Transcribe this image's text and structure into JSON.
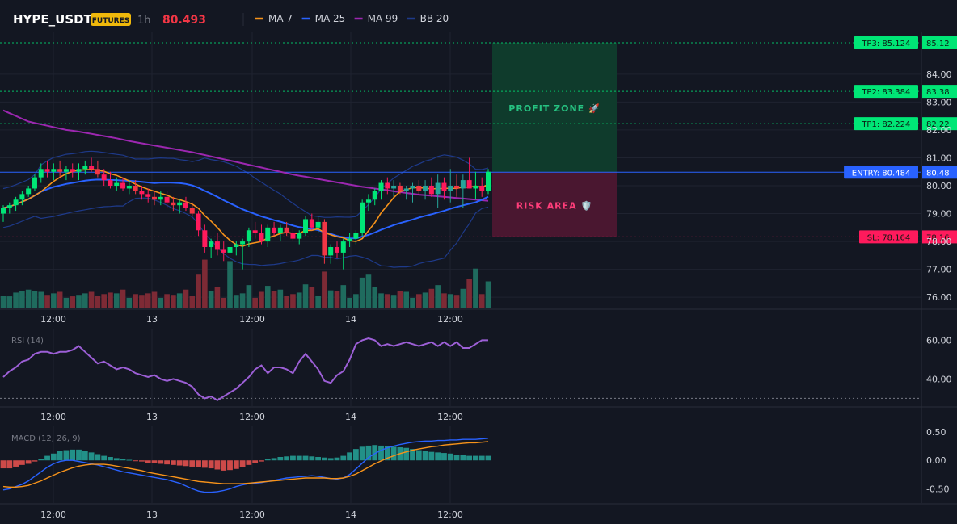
{
  "header": {
    "symbol": "HYPE_USDT",
    "badge": "FUTURES",
    "timeframe": "1h",
    "last_price": "80.493"
  },
  "legend": [
    {
      "label": "MA 7",
      "color": "#f7931a"
    },
    {
      "label": "MA 25",
      "color": "#2962ff"
    },
    {
      "label": "MA 99",
      "color": "#9c27b0"
    },
    {
      "label": "BB 20",
      "color": "#1e3a8a"
    }
  ],
  "colors": {
    "up": "#26a69a",
    "up_bright": "#00e676",
    "down": "#f23645",
    "down_bright": "#ff1a5c",
    "tp": "#00e676",
    "entry": "#2962ff",
    "sl": "#ff1a5c"
  },
  "time_labels": [
    "12:00",
    "13",
    "12:00",
    "14",
    "12:00"
  ],
  "price_axis": {
    "ticks": [
      "84.00",
      "83.00",
      "82.00",
      "81.00",
      "80.00",
      "79.00",
      "78.00",
      "77.00",
      "76.00"
    ],
    "ylim": [
      75.6,
      85.5
    ]
  },
  "levels": [
    {
      "tag": "TP3: 85.124",
      "axis": "85.12",
      "value": 85.124,
      "kind": "tp"
    },
    {
      "tag": "TP2: 83.384",
      "axis": "83.38",
      "value": 83.384,
      "kind": "tp"
    },
    {
      "tag": "TP1: 82.224",
      "axis": "82.22",
      "value": 82.224,
      "kind": "tp"
    },
    {
      "tag": "ENTRY: 80.484",
      "axis": "80.48",
      "value": 80.484,
      "kind": "entry"
    },
    {
      "tag": "SL: 78.164",
      "axis": "78.16",
      "value": 78.164,
      "kind": "sl"
    }
  ],
  "zones": {
    "profit": "PROFIT ZONE 🚀",
    "risk": "RISK AREA 🛡️"
  },
  "chart_data": [
    {
      "type": "candlestick",
      "title": "HYPE_USDT 1h",
      "candles": [
        [
          79.0,
          79.3,
          78.7,
          79.2
        ],
        [
          79.2,
          79.4,
          79.0,
          79.3
        ],
        [
          79.3,
          79.6,
          79.1,
          79.5
        ],
        [
          79.5,
          79.8,
          79.3,
          79.7
        ],
        [
          79.7,
          80.0,
          79.6,
          79.9
        ],
        [
          79.9,
          80.4,
          79.8,
          80.3
        ],
        [
          80.3,
          80.8,
          80.1,
          80.6
        ],
        [
          80.6,
          80.9,
          80.3,
          80.5
        ],
        [
          80.5,
          80.8,
          80.2,
          80.6
        ],
        [
          80.6,
          80.9,
          80.3,
          80.5
        ],
        [
          80.5,
          80.7,
          80.2,
          80.6
        ],
        [
          80.6,
          80.8,
          80.3,
          80.5
        ],
        [
          80.5,
          80.8,
          80.2,
          80.6
        ],
        [
          80.6,
          80.9,
          80.4,
          80.7
        ],
        [
          80.7,
          81.0,
          80.5,
          80.6
        ],
        [
          80.6,
          80.9,
          80.3,
          80.4
        ],
        [
          80.4,
          80.6,
          80.0,
          80.2
        ],
        [
          80.2,
          80.5,
          79.9,
          80.0
        ],
        [
          80.0,
          80.3,
          79.8,
          80.1
        ],
        [
          80.1,
          80.3,
          79.8,
          79.9
        ],
        [
          79.9,
          80.2,
          79.7,
          80.0
        ],
        [
          80.0,
          80.2,
          79.7,
          79.8
        ],
        [
          79.8,
          80.0,
          79.5,
          79.7
        ],
        [
          79.7,
          79.9,
          79.4,
          79.6
        ],
        [
          79.6,
          79.8,
          79.3,
          79.5
        ],
        [
          79.5,
          79.8,
          79.3,
          79.6
        ],
        [
          79.6,
          79.8,
          79.2,
          79.4
        ],
        [
          79.4,
          79.6,
          79.1,
          79.3
        ],
        [
          79.3,
          79.5,
          79.0,
          79.4
        ],
        [
          79.4,
          79.6,
          79.1,
          79.2
        ],
        [
          79.2,
          79.4,
          78.9,
          79.0
        ],
        [
          79.0,
          79.1,
          78.2,
          78.4
        ],
        [
          78.4,
          78.6,
          77.6,
          77.8
        ],
        [
          77.8,
          78.1,
          77.4,
          78.0
        ],
        [
          78.0,
          78.3,
          77.5,
          77.7
        ],
        [
          77.7,
          78.0,
          77.3,
          77.6
        ],
        [
          77.6,
          77.9,
          77.3,
          77.8
        ],
        [
          77.8,
          78.0,
          77.5,
          77.9
        ],
        [
          77.9,
          78.1,
          77.0,
          78.0
        ],
        [
          78.0,
          78.5,
          77.8,
          78.4
        ],
        [
          78.4,
          78.7,
          78.1,
          78.3
        ],
        [
          78.3,
          78.6,
          77.9,
          78.0
        ],
        [
          78.0,
          78.6,
          77.8,
          78.5
        ],
        [
          78.5,
          78.7,
          78.2,
          78.3
        ],
        [
          78.3,
          78.6,
          78.0,
          78.5
        ],
        [
          78.5,
          78.7,
          78.2,
          78.3
        ],
        [
          78.3,
          78.5,
          78.0,
          78.1
        ],
        [
          78.1,
          78.4,
          77.9,
          78.3
        ],
        [
          78.3,
          78.9,
          78.2,
          78.8
        ],
        [
          78.8,
          79.0,
          78.4,
          78.5
        ],
        [
          78.5,
          78.9,
          78.3,
          78.7
        ],
        [
          78.7,
          78.8,
          77.2,
          77.5
        ],
        [
          77.5,
          77.9,
          77.2,
          77.8
        ],
        [
          77.8,
          78.0,
          77.4,
          77.6
        ],
        [
          77.6,
          78.1,
          77.0,
          78.0
        ],
        [
          78.0,
          78.3,
          77.8,
          78.1
        ],
        [
          78.1,
          78.4,
          77.9,
          78.3
        ],
        [
          78.3,
          79.5,
          78.2,
          79.4
        ],
        [
          79.4,
          79.7,
          79.1,
          79.5
        ],
        [
          79.5,
          79.9,
          79.3,
          79.8
        ],
        [
          79.8,
          80.2,
          79.5,
          80.1
        ],
        [
          80.1,
          80.3,
          79.7,
          79.9
        ],
        [
          79.9,
          80.2,
          79.6,
          80.0
        ],
        [
          80.0,
          80.1,
          79.7,
          79.8
        ],
        [
          79.8,
          80.0,
          79.5,
          79.9
        ],
        [
          79.9,
          80.1,
          79.4,
          80.0
        ],
        [
          80.0,
          80.2,
          79.7,
          79.8
        ],
        [
          79.8,
          80.2,
          79.5,
          80.0
        ],
        [
          80.0,
          80.3,
          79.6,
          79.7
        ],
        [
          79.7,
          80.4,
          79.2,
          80.1
        ],
        [
          80.1,
          80.3,
          79.5,
          79.8
        ],
        [
          79.8,
          80.6,
          79.4,
          80.0
        ],
        [
          80.0,
          80.4,
          79.6,
          79.9
        ],
        [
          79.9,
          80.4,
          79.2,
          80.2
        ],
        [
          80.2,
          81.0,
          79.9,
          79.9
        ],
        [
          79.9,
          80.5,
          79.5,
          80.0
        ],
        [
          80.0,
          80.3,
          79.6,
          79.8
        ],
        [
          79.8,
          80.6,
          79.7,
          80.5
        ]
      ]
    },
    {
      "type": "line",
      "title": "RSI (14)",
      "ylim": [
        26,
        66
      ],
      "ticks": [
        "60.00",
        "40.00"
      ],
      "values": [
        41,
        44,
        46,
        49,
        50,
        53,
        54,
        54,
        53,
        54,
        54,
        55,
        57,
        54,
        51,
        48,
        49,
        47,
        45,
        46,
        45,
        43,
        42,
        41,
        42,
        40,
        39,
        40,
        39,
        38,
        36,
        32,
        30,
        31,
        29,
        31,
        33,
        35,
        38,
        41,
        45,
        47,
        43,
        46,
        46,
        45,
        43,
        49,
        53,
        49,
        45,
        39,
        38,
        42,
        44,
        50,
        58,
        60,
        61,
        60,
        57,
        58,
        57,
        58,
        59,
        58,
        57,
        58,
        59,
        57,
        59,
        57,
        59,
        56,
        56,
        58,
        60,
        60
      ]
    },
    {
      "type": "bar+line",
      "title": "MACD (12, 26, 9)",
      "ylim": [
        -0.75,
        0.6
      ],
      "ticks": [
        "0.50",
        "0.00",
        "-0.50"
      ],
      "histogram": [
        -0.14,
        -0.14,
        -0.11,
        -0.08,
        -0.06,
        -0.02,
        0.03,
        0.08,
        0.12,
        0.16,
        0.18,
        0.19,
        0.19,
        0.17,
        0.14,
        0.11,
        0.08,
        0.06,
        0.04,
        0.02,
        0.01,
        -0.01,
        -0.02,
        -0.04,
        -0.05,
        -0.06,
        -0.07,
        -0.08,
        -0.09,
        -0.1,
        -0.11,
        -0.12,
        -0.13,
        -0.14,
        -0.16,
        -0.18,
        -0.17,
        -0.15,
        -0.12,
        -0.08,
        -0.05,
        -0.02,
        0.02,
        0.04,
        0.06,
        0.07,
        0.08,
        0.08,
        0.08,
        0.07,
        0.06,
        0.05,
        0.04,
        0.05,
        0.08,
        0.14,
        0.2,
        0.24,
        0.26,
        0.27,
        0.26,
        0.25,
        0.24,
        0.23,
        0.22,
        0.2,
        0.18,
        0.17,
        0.15,
        0.14,
        0.13,
        0.12,
        0.1,
        0.09,
        0.08,
        0.08,
        0.08,
        0.08
      ],
      "macd": [
        -0.52,
        -0.5,
        -0.46,
        -0.42,
        -0.36,
        -0.28,
        -0.2,
        -0.12,
        -0.06,
        -0.02,
        0.0,
        0.0,
        -0.02,
        -0.04,
        -0.06,
        -0.08,
        -0.11,
        -0.14,
        -0.17,
        -0.2,
        -0.22,
        -0.24,
        -0.26,
        -0.28,
        -0.3,
        -0.32,
        -0.34,
        -0.37,
        -0.4,
        -0.45,
        -0.5,
        -0.54,
        -0.56,
        -0.56,
        -0.55,
        -0.53,
        -0.5,
        -0.46,
        -0.43,
        -0.41,
        -0.4,
        -0.39,
        -0.37,
        -0.35,
        -0.33,
        -0.31,
        -0.3,
        -0.29,
        -0.28,
        -0.27,
        -0.28,
        -0.3,
        -0.32,
        -0.33,
        -0.31,
        -0.25,
        -0.15,
        -0.05,
        0.05,
        0.12,
        0.18,
        0.22,
        0.25,
        0.28,
        0.3,
        0.32,
        0.33,
        0.34,
        0.34,
        0.35,
        0.35,
        0.36,
        0.36,
        0.37,
        0.37,
        0.37,
        0.38,
        0.39
      ],
      "signal": [
        -0.46,
        -0.47,
        -0.47,
        -0.46,
        -0.44,
        -0.4,
        -0.36,
        -0.31,
        -0.26,
        -0.21,
        -0.17,
        -0.13,
        -0.1,
        -0.08,
        -0.07,
        -0.07,
        -0.07,
        -0.08,
        -0.1,
        -0.12,
        -0.14,
        -0.16,
        -0.18,
        -0.21,
        -0.23,
        -0.25,
        -0.27,
        -0.29,
        -0.31,
        -0.33,
        -0.35,
        -0.37,
        -0.38,
        -0.39,
        -0.4,
        -0.41,
        -0.41,
        -0.41,
        -0.41,
        -0.4,
        -0.39,
        -0.38,
        -0.37,
        -0.36,
        -0.35,
        -0.34,
        -0.33,
        -0.32,
        -0.31,
        -0.31,
        -0.31,
        -0.31,
        -0.32,
        -0.32,
        -0.31,
        -0.28,
        -0.24,
        -0.18,
        -0.12,
        -0.06,
        -0.01,
        0.04,
        0.08,
        0.12,
        0.15,
        0.18,
        0.2,
        0.22,
        0.24,
        0.25,
        0.27,
        0.28,
        0.29,
        0.3,
        0.31,
        0.31,
        0.32,
        0.33
      ]
    }
  ]
}
